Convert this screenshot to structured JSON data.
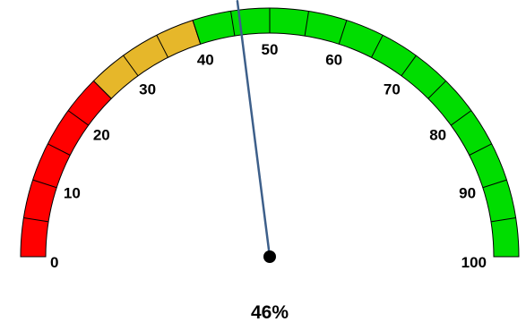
{
  "chart_data": {
    "type": "gauge",
    "min": 0,
    "max": 100,
    "value": 46,
    "value_label": "46%",
    "tick_labels": [
      "0",
      "10",
      "20",
      "30",
      "40",
      "50",
      "60",
      "70",
      "80",
      "90",
      "100"
    ],
    "tick_values": [
      0,
      10,
      20,
      30,
      40,
      50,
      60,
      70,
      80,
      90,
      100
    ],
    "bands": [
      {
        "from": 0,
        "to": 25,
        "color": "#ff0000"
      },
      {
        "from": 25,
        "to": 40,
        "color": "#e6b72a"
      },
      {
        "from": 40,
        "to": 100,
        "color": "#00dd00"
      }
    ],
    "needle_color": "#3d5f8a",
    "hub_color": "#000000"
  }
}
